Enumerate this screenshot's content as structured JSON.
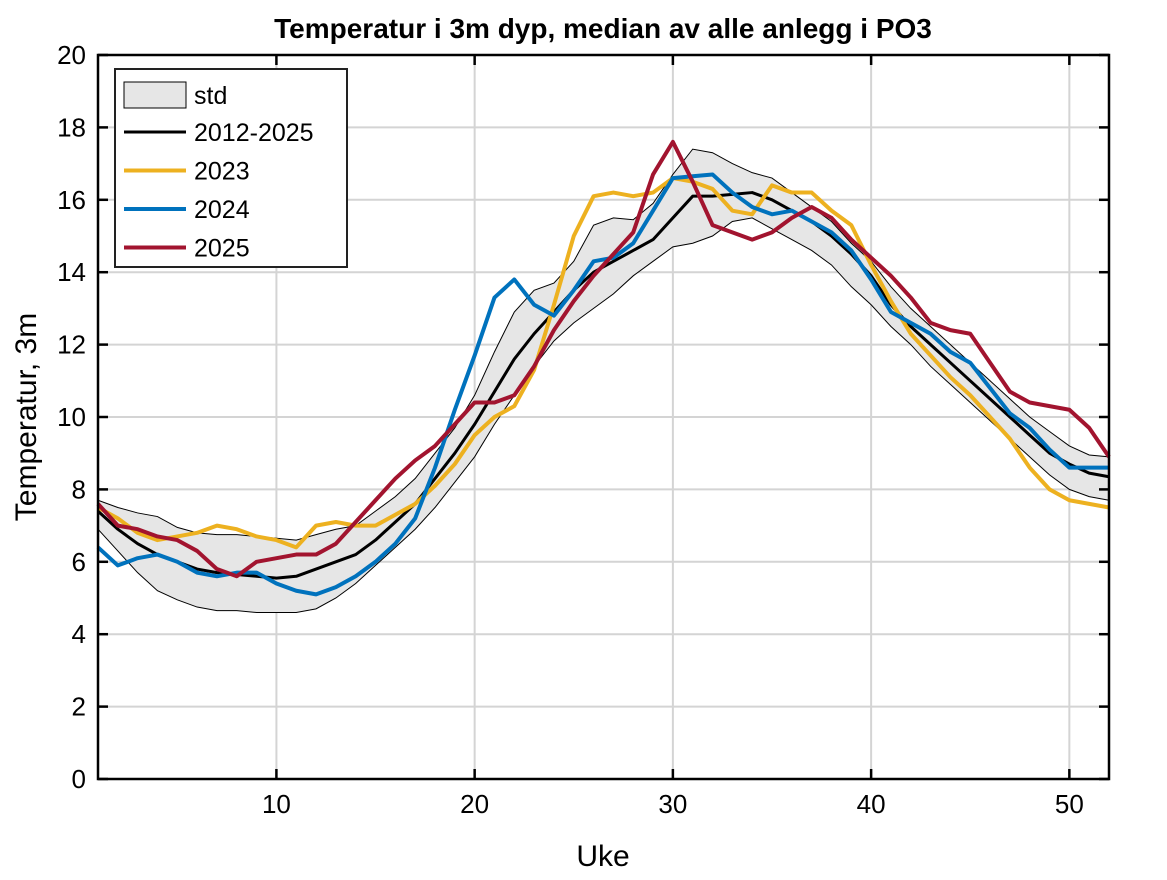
{
  "chart_data": {
    "type": "line",
    "title": "Temperatur i 3m dyp, median av alle anlegg i PO3",
    "xlabel": "Uke",
    "ylabel": "Temperatur, 3m",
    "xlim": [
      1,
      52
    ],
    "ylim": [
      0,
      20
    ],
    "xticks": [
      10,
      20,
      30,
      40,
      50
    ],
    "yticks": [
      0,
      2,
      4,
      6,
      8,
      10,
      12,
      14,
      16,
      18,
      20
    ],
    "grid": true,
    "legend_position": "top-left",
    "x": [
      1,
      2,
      3,
      4,
      5,
      6,
      7,
      8,
      9,
      10,
      11,
      12,
      13,
      14,
      15,
      16,
      17,
      18,
      19,
      20,
      21,
      22,
      23,
      24,
      25,
      26,
      27,
      28,
      29,
      30,
      31,
      32,
      33,
      34,
      35,
      36,
      37,
      38,
      39,
      40,
      41,
      42,
      43,
      44,
      45,
      46,
      47,
      48,
      49,
      50,
      51,
      52
    ],
    "band": {
      "name": "std",
      "color": "#e6e6e6",
      "upper": [
        7.7,
        7.5,
        7.35,
        7.25,
        6.95,
        6.8,
        6.75,
        6.75,
        6.7,
        6.65,
        6.6,
        6.75,
        6.9,
        7.0,
        7.4,
        7.8,
        8.3,
        9.0,
        9.7,
        10.6,
        11.8,
        12.9,
        13.5,
        13.7,
        14.3,
        15.3,
        15.5,
        15.45,
        15.9,
        16.7,
        17.4,
        17.3,
        17.0,
        16.75,
        16.6,
        16.2,
        15.8,
        15.4,
        14.8,
        14.3,
        13.6,
        13.0,
        12.5,
        12.0,
        11.5,
        11.0,
        10.5,
        10.0,
        9.6,
        9.2,
        8.95,
        8.9
      ],
      "lower": [
        6.9,
        6.3,
        5.7,
        5.2,
        4.95,
        4.75,
        4.65,
        4.65,
        4.6,
        4.6,
        4.6,
        4.7,
        5.0,
        5.4,
        5.9,
        6.4,
        6.9,
        7.5,
        8.2,
        8.9,
        9.8,
        10.6,
        11.4,
        12.1,
        12.6,
        13.0,
        13.4,
        13.9,
        14.3,
        14.7,
        14.8,
        15.0,
        15.4,
        15.5,
        15.2,
        14.9,
        14.6,
        14.2,
        13.6,
        13.1,
        12.5,
        12.0,
        11.4,
        10.9,
        10.4,
        9.9,
        9.4,
        8.9,
        8.4,
        8.0,
        7.8,
        7.7
      ]
    },
    "series": [
      {
        "name": "2012-2025",
        "color": "#000000",
        "width": 3,
        "values": [
          7.4,
          6.9,
          6.5,
          6.2,
          6.0,
          5.8,
          5.7,
          5.65,
          5.6,
          5.55,
          5.6,
          5.8,
          6.0,
          6.2,
          6.6,
          7.1,
          7.6,
          8.3,
          9.0,
          9.8,
          10.7,
          11.6,
          12.3,
          12.9,
          13.5,
          14.0,
          14.3,
          14.6,
          14.9,
          15.5,
          16.1,
          16.1,
          16.15,
          16.2,
          16.0,
          15.7,
          15.4,
          15.0,
          14.5,
          13.9,
          13.1,
          12.5,
          12.0,
          11.5,
          11.0,
          10.5,
          10.0,
          9.5,
          9.0,
          8.7,
          8.45,
          8.35
        ]
      },
      {
        "name": "2023",
        "color": "#EDB120",
        "width": 4,
        "values": [
          7.5,
          7.2,
          6.8,
          6.6,
          6.7,
          6.8,
          7.0,
          6.9,
          6.7,
          6.6,
          6.4,
          7.0,
          7.1,
          7.0,
          7.0,
          7.3,
          7.6,
          8.1,
          8.7,
          9.5,
          10.0,
          10.3,
          11.3,
          13.1,
          15.0,
          16.1,
          16.2,
          16.1,
          16.2,
          16.6,
          16.5,
          16.3,
          15.7,
          15.6,
          16.4,
          16.2,
          16.2,
          15.7,
          15.3,
          14.2,
          13.2,
          12.3,
          11.7,
          11.1,
          10.6,
          10.0,
          9.4,
          8.6,
          8.0,
          7.7,
          7.6,
          7.5
        ]
      },
      {
        "name": "2024",
        "color": "#0072BD",
        "width": 4,
        "values": [
          6.4,
          5.9,
          6.1,
          6.2,
          6.0,
          5.7,
          5.6,
          5.7,
          5.7,
          5.4,
          5.2,
          5.1,
          5.3,
          5.6,
          6.0,
          6.5,
          7.2,
          8.6,
          10.2,
          11.7,
          13.3,
          13.8,
          13.1,
          12.8,
          13.5,
          14.3,
          14.4,
          14.8,
          15.7,
          16.6,
          16.65,
          16.7,
          16.2,
          15.8,
          15.6,
          15.7,
          15.4,
          15.1,
          14.6,
          13.8,
          12.9,
          12.6,
          12.3,
          11.8,
          11.5,
          10.8,
          10.1,
          9.7,
          9.1,
          8.6,
          8.6,
          8.6
        ]
      },
      {
        "name": "2025",
        "color": "#A2142F",
        "width": 4,
        "values": [
          7.6,
          7.0,
          6.9,
          6.7,
          6.6,
          6.3,
          5.8,
          5.6,
          6.0,
          6.1,
          6.2,
          6.2,
          6.5,
          7.1,
          7.7,
          8.3,
          8.8,
          9.2,
          9.8,
          10.4,
          10.4,
          10.6,
          11.4,
          12.4,
          13.2,
          13.9,
          14.5,
          15.1,
          16.7,
          17.6,
          16.5,
          15.3,
          15.1,
          14.9,
          15.1,
          15.5,
          15.8,
          15.5,
          14.9,
          14.4,
          13.9,
          13.3,
          12.6,
          12.4,
          12.3,
          11.5,
          10.7,
          10.4,
          10.3,
          10.2,
          9.7,
          8.9
        ]
      }
    ]
  }
}
